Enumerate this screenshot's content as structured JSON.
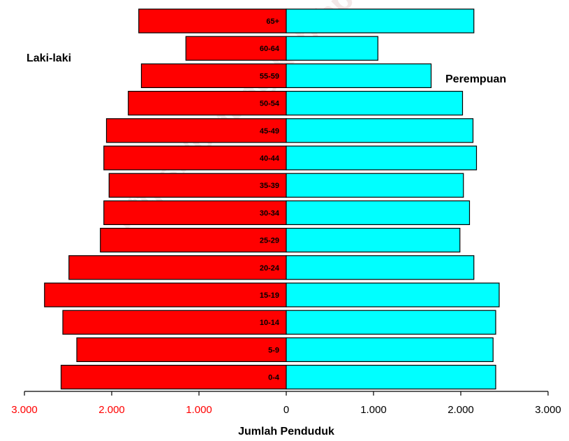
{
  "watermark": "https://batang.kab.bps.go.id",
  "chart_data": {
    "type": "bar",
    "orientation": "horizontal-pyramid",
    "categories": [
      "0-4",
      "5-9",
      "10-14",
      "15-19",
      "20-24",
      "25-29",
      "30-34",
      "35-39",
      "40-44",
      "45-49",
      "50-54",
      "55-59",
      "60-64",
      "65+"
    ],
    "series": [
      {
        "name": "Laki-laki",
        "side": "left",
        "color": "#ff0000",
        "values": [
          2580,
          2400,
          2560,
          2770,
          2490,
          2130,
          2090,
          2030,
          2090,
          2060,
          1810,
          1660,
          1150,
          1690
        ]
      },
      {
        "name": "Perempuan",
        "side": "right",
        "color": "#00ffff",
        "values": [
          2400,
          2370,
          2400,
          2440,
          2150,
          1990,
          2100,
          2030,
          2180,
          2140,
          2020,
          1660,
          1050,
          2150
        ]
      }
    ],
    "xlabel": "Jumlah Penduduk",
    "xlim": [
      -3000,
      3000
    ],
    "ticks": [
      -3000,
      -2000,
      -1000,
      0,
      1000,
      2000,
      3000
    ],
    "tick_labels": [
      "3.000",
      "2.000",
      "1.000",
      "0",
      "1.000",
      "2.000",
      "3.000"
    ],
    "tick_colors": [
      "#ff0000",
      "#ff0000",
      "#ff0000",
      "#000000",
      "#000000",
      "#000000",
      "#000000"
    ],
    "grid": false,
    "legend_position": "labels placed top-left and top-right"
  }
}
